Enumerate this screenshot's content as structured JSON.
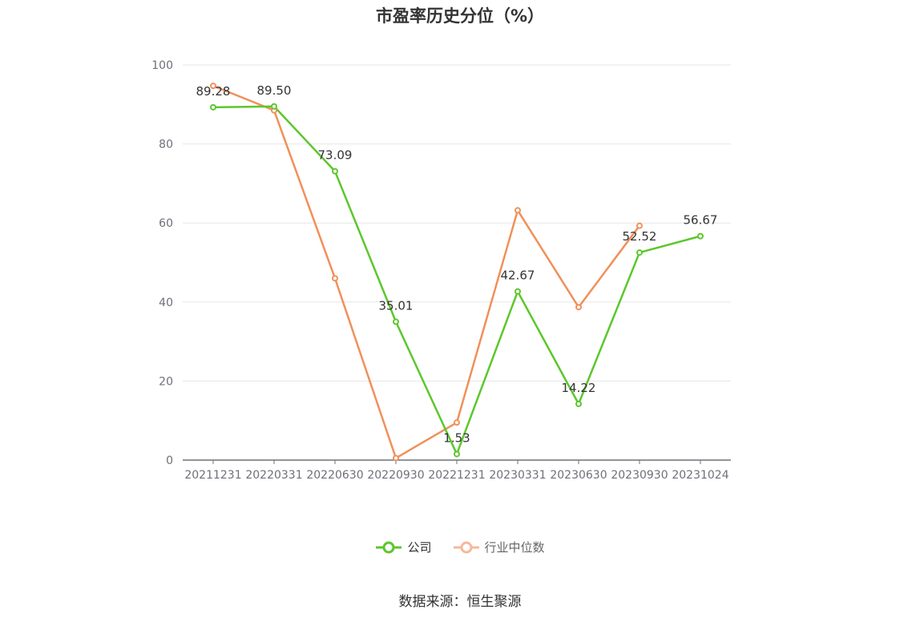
{
  "chart_data": {
    "type": "line",
    "title": "市盈率历史分位（%）",
    "categories": [
      "20211231",
      "20220331",
      "20220630",
      "20220930",
      "20221231",
      "20230331",
      "20230630",
      "20230930",
      "20231024"
    ],
    "ylim": [
      0,
      100
    ],
    "yticks": [
      0,
      20,
      40,
      60,
      80,
      100
    ],
    "grid": true,
    "legend_position": "bottom",
    "series": [
      {
        "name": "公司",
        "color": "#5cc72d",
        "values": [
          89.28,
          89.5,
          73.09,
          35.01,
          1.53,
          42.67,
          14.22,
          52.52,
          56.67
        ],
        "labels": [
          "89.28",
          "89.50",
          "73.09",
          "35.01",
          "1.53",
          "42.67",
          "14.22",
          "52.52",
          "56.67"
        ]
      },
      {
        "name": "行业中位数",
        "color": "#f0905a",
        "values": [
          94.7,
          88.5,
          46.0,
          0.5,
          9.5,
          63.2,
          38.7,
          59.3,
          null
        ]
      }
    ]
  },
  "legend": {
    "company_label": "公司",
    "industry_label": "行业中位数",
    "company_color": "#5cc72d",
    "industry_color": "#f5b99a"
  },
  "source": "数据来源：恒生聚源"
}
